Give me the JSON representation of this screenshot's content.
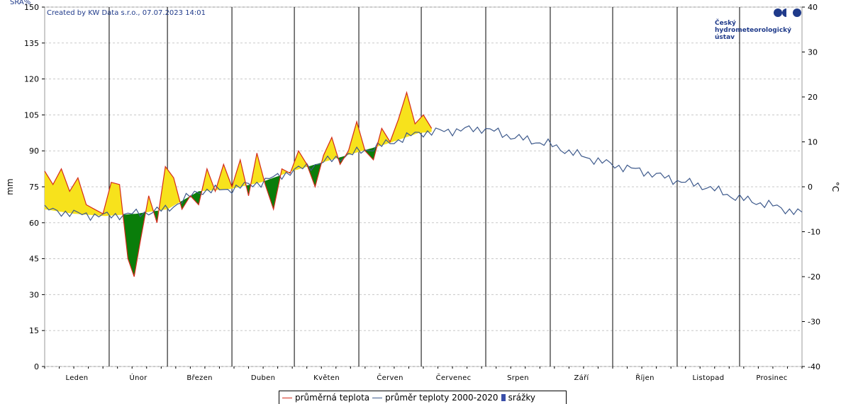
{
  "chart_data": {
    "type": "line",
    "credit": "Created by KW Data s.r.o., 07.07.2023 14:01",
    "corner_label": "SRA%",
    "ylabel_left": "mm",
    "ylabel_right": "°C",
    "ylim_left": [
      0,
      150
    ],
    "ylim_right": [
      -40,
      40
    ],
    "yticks_left": [
      0,
      15,
      30,
      45,
      60,
      75,
      90,
      105,
      120,
      135,
      150
    ],
    "yticks_right": [
      -40,
      -30,
      -20,
      -10,
      0,
      10,
      20,
      30,
      40
    ],
    "months": [
      "Leden",
      "Únor",
      "Březen",
      "Duben",
      "Květen",
      "Červen",
      "Červenec",
      "Srpen",
      "Září",
      "Říjen",
      "Listopad",
      "Prosinec"
    ],
    "grid": true,
    "legend_position": "bottom-center",
    "fill_colors": {
      "above_normal": "#f7e21c",
      "below_normal": "#0a7d0a"
    },
    "series": [
      {
        "name": "průměrná teplota",
        "color": "#d42a1a",
        "x_day": [
          1,
          5,
          9,
          13,
          17,
          21,
          25,
          29,
          33,
          37,
          41,
          44,
          47,
          51,
          55,
          59,
          63,
          67,
          71,
          75,
          79,
          83,
          87,
          91,
          95,
          99,
          103,
          107,
          111,
          115,
          119,
          123,
          127,
          131,
          135,
          139,
          143,
          147,
          151,
          155,
          159,
          163,
          167,
          171,
          175,
          179,
          183,
          187
        ],
        "y_temp": [
          3.5,
          0.5,
          4,
          -1,
          2,
          -4,
          -5,
          -6,
          1,
          0.5,
          -16,
          -20,
          -12,
          -2,
          -8,
          4.5,
          2,
          -5,
          -2,
          -4,
          4,
          -1,
          5,
          0,
          6,
          -2,
          7.5,
          0.5,
          -5,
          4,
          3,
          8,
          5,
          0,
          7,
          11,
          5,
          8,
          14.5,
          8,
          6,
          13,
          10,
          15,
          21,
          14,
          16,
          13
        ]
      },
      {
        "name": "průměr teploty 2000-2020",
        "color": "#3e5a8c",
        "x_day": [
          1,
          15,
          30,
          45,
          60,
          75,
          90,
          105,
          120,
          135,
          150,
          165,
          181,
          196,
          212,
          227,
          243,
          258,
          273,
          288,
          304,
          319,
          334,
          349,
          365
        ],
        "y_temp": [
          -5,
          -6,
          -6.5,
          -6,
          -5,
          -1,
          -0.5,
          1,
          3.5,
          5.5,
          7.5,
          9.5,
          12,
          12.5,
          13,
          11,
          9.5,
          7,
          5,
          3.5,
          1.5,
          0,
          -2.5,
          -4,
          -6
        ]
      },
      {
        "name": "srážky",
        "color": "#3a4fa8",
        "values": []
      }
    ]
  }
}
